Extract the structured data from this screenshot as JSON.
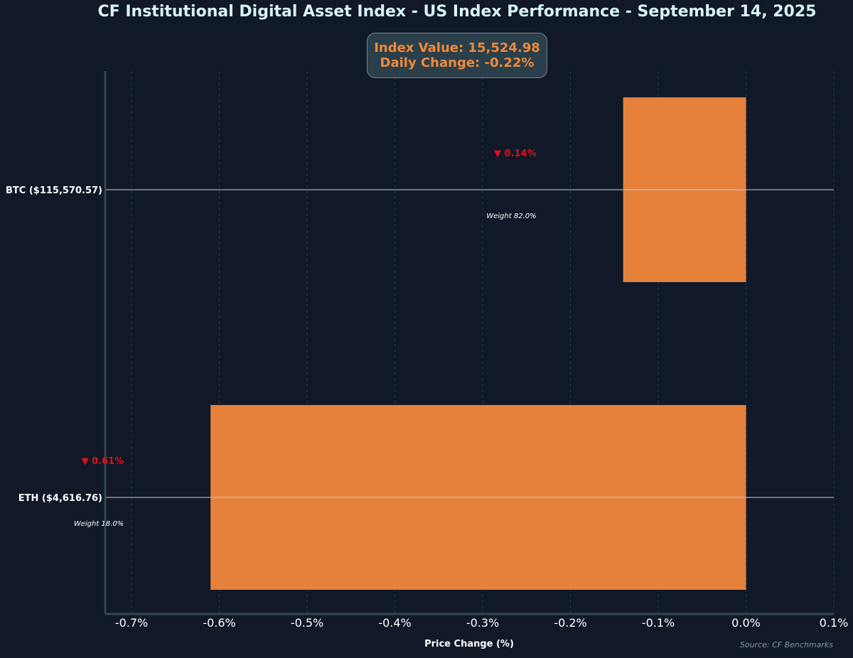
{
  "title": "CF Institutional Digital Asset Index - US Index Performance - September 14, 2025",
  "summary": {
    "index_value": "Index Value: 15,524.98",
    "daily_change": "Daily Change: -0.22%"
  },
  "source": "Source: CF Benchmarks",
  "colors": {
    "background": "#111827",
    "bar": "#e6813c",
    "down": "#e0101a",
    "title": "#d6f4f7",
    "axis": "#34474f"
  },
  "chart_data": {
    "type": "bar",
    "orientation": "horizontal",
    "xlabel": "Price Change (%)",
    "ylabel": "",
    "xlim": [
      -0.73,
      0.1
    ],
    "xticks": [
      -0.7,
      -0.6,
      -0.5,
      -0.4,
      -0.3,
      -0.2,
      -0.1,
      0.0,
      0.1
    ],
    "xtick_labels": [
      "-0.7%",
      "-0.6%",
      "-0.5%",
      "-0.4%",
      "-0.3%",
      "-0.2%",
      "-0.1%",
      "0.0%",
      "0.1%"
    ],
    "grid": "vertical dashed",
    "categories": [
      "BTC ($115,570.57)",
      "ETH ($4,616.76)"
    ],
    "values": [
      -0.14,
      -0.61
    ],
    "change_labels": [
      "▼ 0.14%",
      "▼ 0.61%"
    ],
    "weight_labels": [
      "Weight 82.0%",
      "Weight 18.0%"
    ]
  }
}
